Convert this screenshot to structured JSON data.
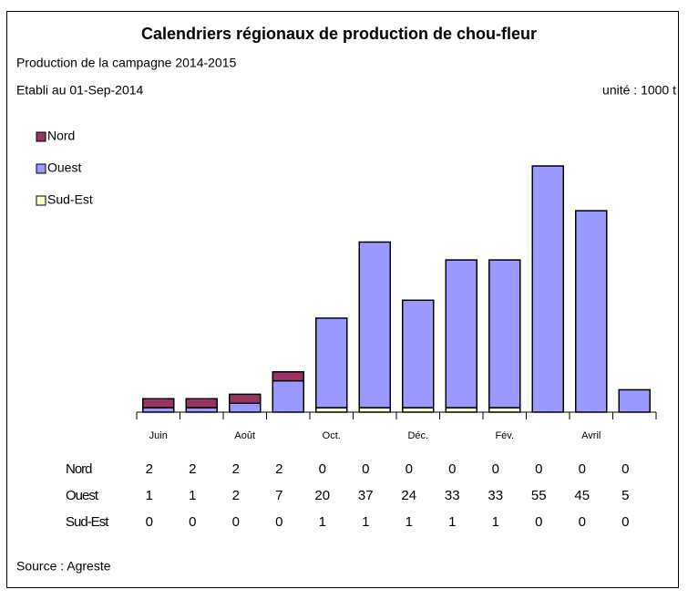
{
  "chart_data": {
    "type": "bar",
    "stacked": true,
    "title": "Calendriers régionaux de production de chou-fleur",
    "subtitle": "Production de la campagne 2014-2015",
    "date_note": "Etabli au 01-Sep-2014",
    "unit_note": "unité : 1000 t",
    "source": "Source : Agreste",
    "categories": [
      "Juin",
      null,
      "Août",
      null,
      "Oct.",
      null,
      "Déc.",
      null,
      "Fév.",
      null,
      "Avril",
      null
    ],
    "series": [
      {
        "name": "Nord",
        "color": "#993366",
        "values": [
          2,
          2,
          2,
          2,
          0,
          0,
          0,
          0,
          0,
          0,
          0,
          0
        ]
      },
      {
        "name": "Ouest",
        "color": "#9999ff",
        "values": [
          1,
          1,
          2,
          7,
          20,
          37,
          24,
          33,
          33,
          55,
          45,
          5
        ]
      },
      {
        "name": "Sud-Est",
        "color": "#ffffcc",
        "values": [
          0,
          0,
          0,
          0,
          1,
          1,
          1,
          1,
          1,
          0,
          0,
          0
        ]
      }
    ]
  }
}
